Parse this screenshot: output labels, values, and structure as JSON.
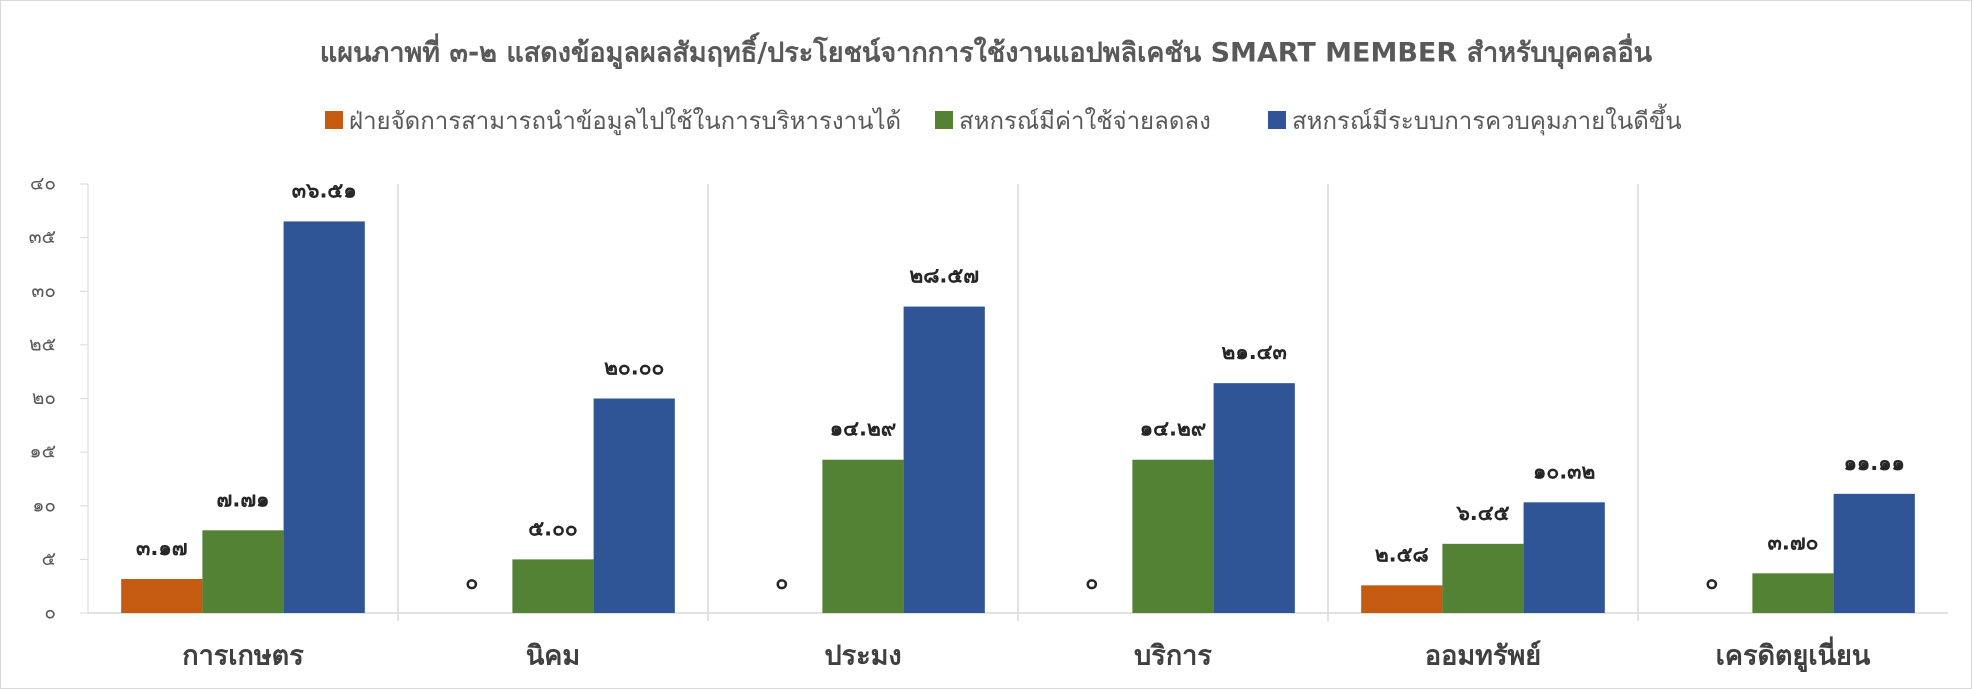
{
  "chart_data": {
    "type": "bar",
    "title": "แผนภาพที่ ๓-๒ แสดงข้อมูลผลสัมฤทธิ์/ประโยชน์จากการใช้งานแอปพลิเคชัน SMART MEMBER สำหรับบุคคลอื่น",
    "categories": [
      "การเกษตร",
      "นิคม",
      "ประมง",
      "บริการ",
      "ออมทรัพย์",
      "เครดิตยูเนี่ยน"
    ],
    "series": [
      {
        "name": "ฝ่ายจัดการสามารถนำข้อมูลไปใช้ในการบริหารงานได้",
        "color": "#c55a11",
        "values": [
          3.17,
          0,
          0,
          0,
          2.58,
          0
        ],
        "value_labels": [
          "๓.๑๗",
          "๐",
          "๐",
          "๐",
          "๒.๕๘",
          "๐"
        ]
      },
      {
        "name": "สหกรณ์มีค่าใช้จ่ายลดลง",
        "color": "#548235",
        "values": [
          7.71,
          5.0,
          14.29,
          14.29,
          6.45,
          3.7
        ],
        "value_labels": [
          "๗.๗๑",
          "๕.๐๐",
          "๑๔.๒๙",
          "๑๔.๒๙",
          "๖.๔๕",
          "๓.๗๐"
        ]
      },
      {
        "name": "สหกรณ์มีระบบการควบคุมภายในดีขึ้น",
        "color": "#2f5597",
        "values": [
          36.51,
          20.0,
          28.57,
          21.43,
          10.32,
          11.11
        ],
        "value_labels": [
          "๓๖.๕๑",
          "๒๐.๐๐",
          "๒๘.๕๗",
          "๒๑.๔๓",
          "๑๐.๓๒",
          "๑๑.๑๑"
        ]
      }
    ],
    "ylim": [
      0,
      40
    ],
    "yticks": [
      {
        "value": 0,
        "label": "๐"
      },
      {
        "value": 5,
        "label": "๕"
      },
      {
        "value": 10,
        "label": "๑๐"
      },
      {
        "value": 15,
        "label": "๑๕"
      },
      {
        "value": 20,
        "label": "๒๐"
      },
      {
        "value": 25,
        "label": "๒๕"
      },
      {
        "value": 30,
        "label": "๓๐"
      },
      {
        "value": 35,
        "label": "๓๕"
      },
      {
        "value": 40,
        "label": "๔๐"
      }
    ],
    "legend": "top"
  }
}
